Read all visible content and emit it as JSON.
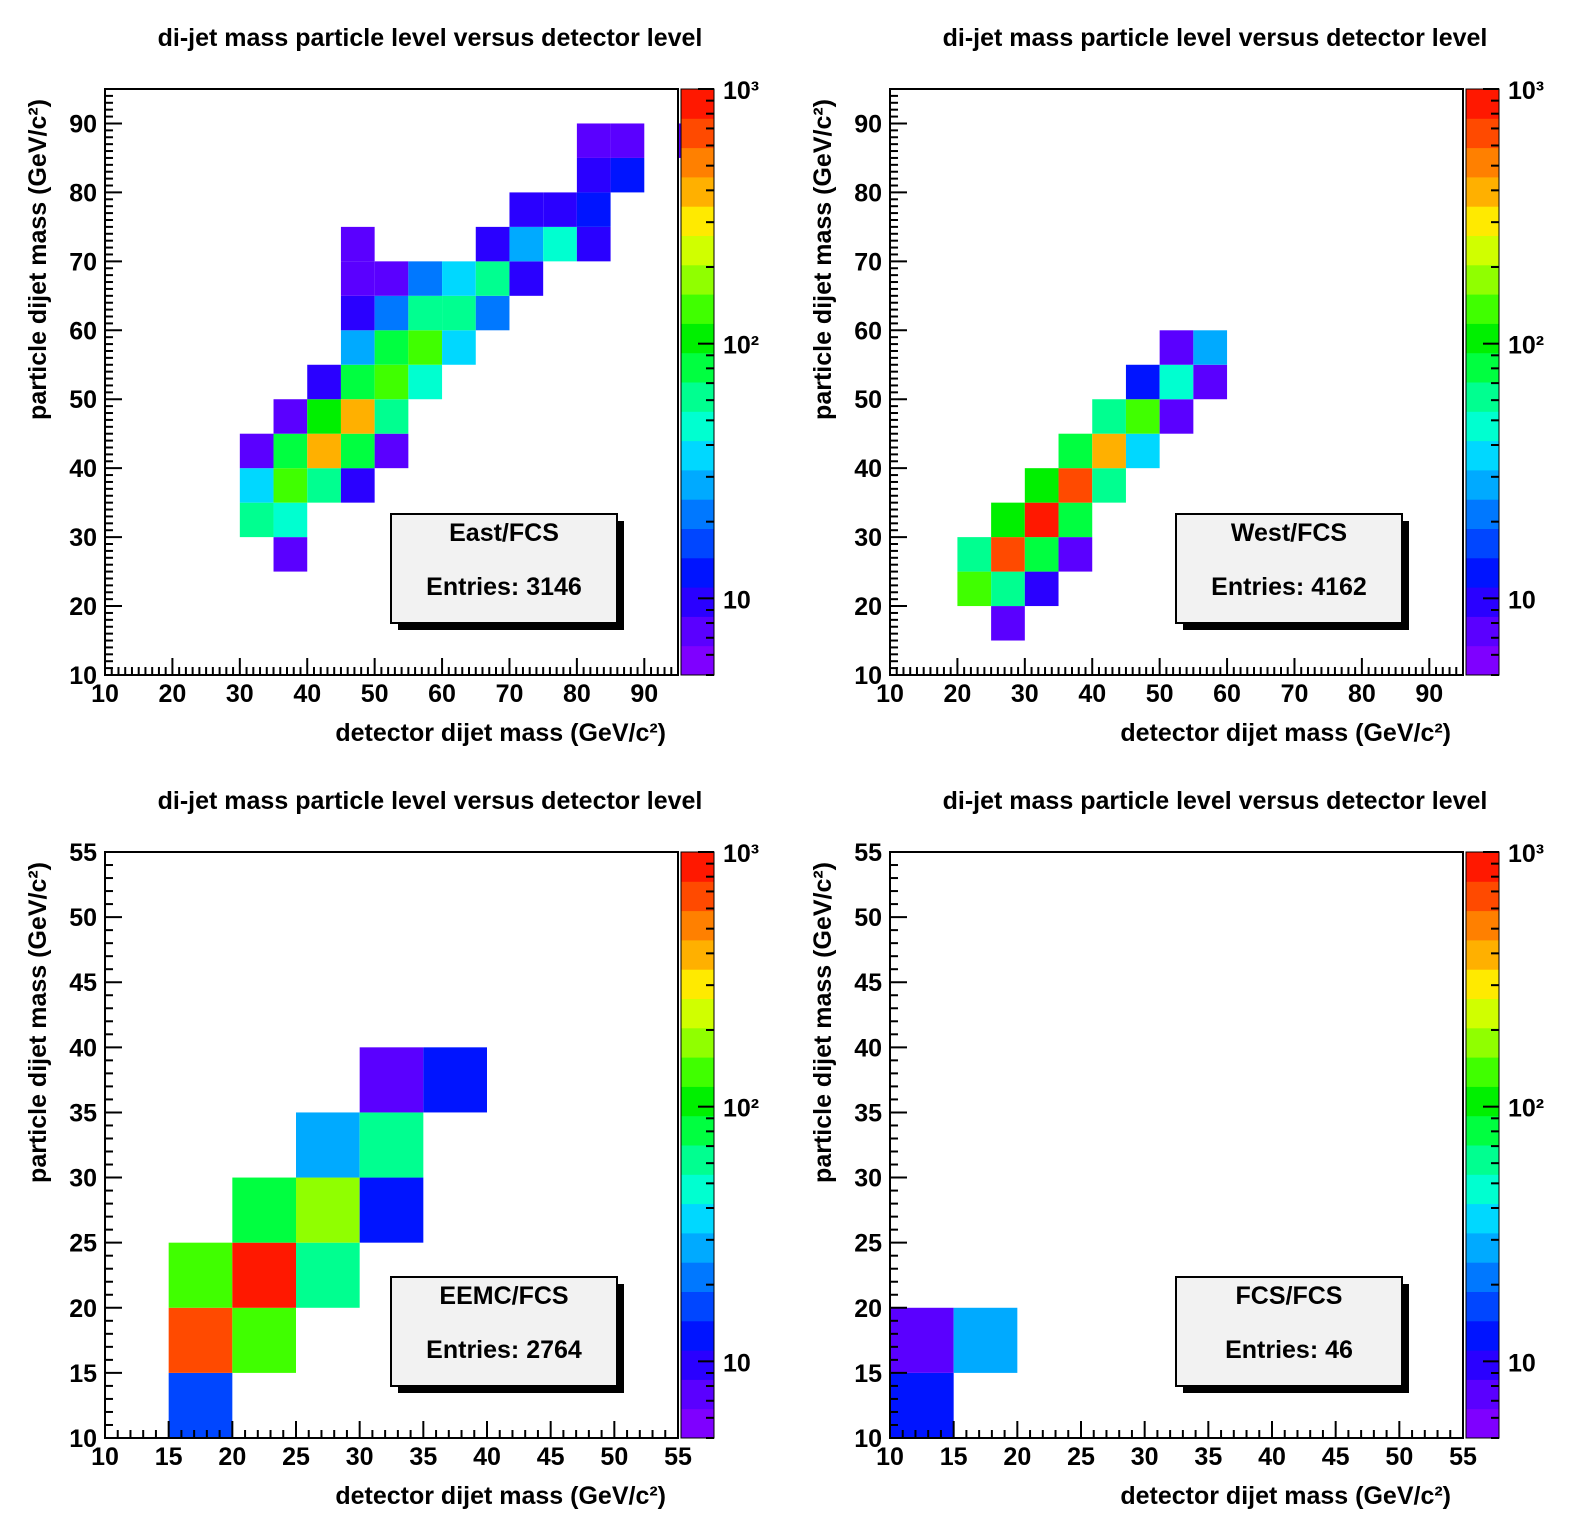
{
  "palette": [
    "#7f00ff",
    "#5a00ff",
    "#2a00ff",
    "#0014ff",
    "#0046ff",
    "#0078ff",
    "#00aaff",
    "#00d8ff",
    "#00ffd0",
    "#00ff90",
    "#00ff40",
    "#00f000",
    "#40ff00",
    "#90ff00",
    "#d0ff00",
    "#ffea00",
    "#ffb000",
    "#ff8000",
    "#ff4a00",
    "#ff1800",
    "#ff0000"
  ],
  "chart_data": [
    {
      "type": "heatmap",
      "title": "di-jet mass particle level versus detector level",
      "xlabel": "detector dijet mass (GeV/c²)",
      "ylabel": "particle dijet mass (GeV/c²)",
      "xlim": [
        10,
        95
      ],
      "ylim": [
        10,
        95
      ],
      "xticks": [
        10,
        20,
        30,
        40,
        50,
        60,
        70,
        80,
        90
      ],
      "yticks": [
        10,
        20,
        30,
        40,
        50,
        60,
        70,
        80,
        90
      ],
      "bin_width": 5,
      "zlim": [
        5,
        1000
      ],
      "zticks": [
        {
          "value": 10,
          "label": "10"
        },
        {
          "value": 100,
          "label": "10²"
        },
        {
          "value": 1000,
          "label": "10³"
        }
      ],
      "legend_title": "East/FCS",
      "entries_label": "Entries: 3146",
      "bins": [
        [
          35,
          25,
          7
        ],
        [
          30,
          30,
          70
        ],
        [
          35,
          30,
          45
        ],
        [
          30,
          35,
          35
        ],
        [
          35,
          35,
          150
        ],
        [
          40,
          35,
          60
        ],
        [
          45,
          35,
          9
        ],
        [
          30,
          40,
          7
        ],
        [
          35,
          40,
          80
        ],
        [
          40,
          40,
          350
        ],
        [
          45,
          40,
          80
        ],
        [
          50,
          40,
          7
        ],
        [
          35,
          45,
          7
        ],
        [
          40,
          45,
          110
        ],
        [
          45,
          45,
          350
        ],
        [
          50,
          45,
          70
        ],
        [
          40,
          50,
          10
        ],
        [
          45,
          50,
          80
        ],
        [
          50,
          50,
          150
        ],
        [
          55,
          50,
          50
        ],
        [
          45,
          55,
          25
        ],
        [
          50,
          55,
          80
        ],
        [
          55,
          55,
          130
        ],
        [
          60,
          55,
          35
        ],
        [
          45,
          60,
          10
        ],
        [
          50,
          60,
          20
        ],
        [
          55,
          60,
          55
        ],
        [
          60,
          60,
          65
        ],
        [
          65,
          60,
          20
        ],
        [
          45,
          65,
          7
        ],
        [
          50,
          65,
          7
        ],
        [
          55,
          65,
          20
        ],
        [
          60,
          65,
          35
        ],
        [
          65,
          65,
          55
        ],
        [
          70,
          65,
          9
        ],
        [
          45,
          70,
          7
        ],
        [
          65,
          70,
          9
        ],
        [
          70,
          70,
          25
        ],
        [
          75,
          70,
          45
        ],
        [
          80,
          70,
          10
        ],
        [
          70,
          75,
          10
        ],
        [
          75,
          75,
          10
        ],
        [
          80,
          75,
          12
        ],
        [
          80,
          80,
          10
        ],
        [
          85,
          80,
          13
        ],
        [
          80,
          85,
          7
        ],
        [
          85,
          85,
          8
        ],
        [
          95,
          85,
          7
        ]
      ]
    },
    {
      "type": "heatmap",
      "title": "di-jet mass particle level versus detector level",
      "xlabel": "detector dijet mass (GeV/c²)",
      "ylabel": "particle dijet mass (GeV/c²)",
      "xlim": [
        10,
        95
      ],
      "ylim": [
        10,
        95
      ],
      "xticks": [
        10,
        20,
        30,
        40,
        50,
        60,
        70,
        80,
        90
      ],
      "yticks": [
        10,
        20,
        30,
        40,
        50,
        60,
        70,
        80,
        90
      ],
      "bin_width": 5,
      "zlim": [
        5,
        1000
      ],
      "zticks": [
        {
          "value": 10,
          "label": "10"
        },
        {
          "value": 100,
          "label": "10²"
        },
        {
          "value": 1000,
          "label": "10³"
        }
      ],
      "legend_title": "West/FCS",
      "entries_label": "Entries: 4162",
      "bins": [
        [
          25,
          15,
          7
        ],
        [
          20,
          20,
          130
        ],
        [
          25,
          20,
          70
        ],
        [
          30,
          20,
          10
        ],
        [
          20,
          25,
          60
        ],
        [
          25,
          25,
          700
        ],
        [
          30,
          25,
          90
        ],
        [
          35,
          25,
          7
        ],
        [
          25,
          30,
          110
        ],
        [
          30,
          30,
          900
        ],
        [
          35,
          30,
          80
        ],
        [
          30,
          35,
          110
        ],
        [
          35,
          35,
          700
        ],
        [
          40,
          35,
          55
        ],
        [
          35,
          40,
          80
        ],
        [
          40,
          40,
          350
        ],
        [
          45,
          40,
          35
        ],
        [
          40,
          45,
          55
        ],
        [
          45,
          45,
          130
        ],
        [
          50,
          45,
          8
        ],
        [
          45,
          50,
          12
        ],
        [
          50,
          50,
          45
        ],
        [
          55,
          50,
          8
        ],
        [
          50,
          55,
          8
        ],
        [
          55,
          55,
          25
        ]
      ]
    },
    {
      "type": "heatmap",
      "title": "di-jet mass particle level versus detector level",
      "xlabel": "detector dijet mass (GeV/c²)",
      "ylabel": "particle dijet mass (GeV/c²)",
      "xlim": [
        10,
        55
      ],
      "ylim": [
        10,
        55
      ],
      "xticks": [
        10,
        15,
        20,
        25,
        30,
        35,
        40,
        45,
        50,
        55
      ],
      "yticks": [
        10,
        15,
        20,
        25,
        30,
        35,
        40,
        45,
        50,
        55
      ],
      "bin_width": 5,
      "zlim": [
        5,
        1000
      ],
      "zticks": [
        {
          "value": 10,
          "label": "10"
        },
        {
          "value": 100,
          "label": "10²"
        },
        {
          "value": 1000,
          "label": "10³"
        }
      ],
      "legend_title": "EEMC/FCS",
      "entries_label": "Entries: 2764",
      "bins": [
        [
          15,
          10,
          18
        ],
        [
          15,
          15,
          700
        ],
        [
          20,
          15,
          130
        ],
        [
          15,
          20,
          130
        ],
        [
          20,
          20,
          900
        ],
        [
          25,
          20,
          60
        ],
        [
          20,
          25,
          90
        ],
        [
          25,
          25,
          200
        ],
        [
          30,
          25,
          12
        ],
        [
          25,
          30,
          25
        ],
        [
          30,
          30,
          60
        ],
        [
          30,
          35,
          8
        ],
        [
          35,
          35,
          12
        ]
      ]
    },
    {
      "type": "heatmap",
      "title": "di-jet mass particle level versus detector level",
      "xlabel": "detector dijet mass (GeV/c²)",
      "ylabel": "particle dijet mass (GeV/c²)",
      "xlim": [
        10,
        55
      ],
      "ylim": [
        10,
        55
      ],
      "xticks": [
        10,
        15,
        20,
        25,
        30,
        35,
        40,
        45,
        50,
        55
      ],
      "yticks": [
        10,
        15,
        20,
        25,
        30,
        35,
        40,
        45,
        50,
        55
      ],
      "bin_width": 5,
      "zlim": [
        5,
        1000
      ],
      "zticks": [
        {
          "value": 10,
          "label": "10"
        },
        {
          "value": 100,
          "label": "10²"
        },
        {
          "value": 1000,
          "label": "10³"
        }
      ],
      "legend_title": "FCS/FCS",
      "entries_label": "Entries: 46",
      "bins": [
        [
          10,
          10,
          12
        ],
        [
          10,
          15,
          8
        ],
        [
          15,
          15,
          25
        ]
      ]
    }
  ]
}
